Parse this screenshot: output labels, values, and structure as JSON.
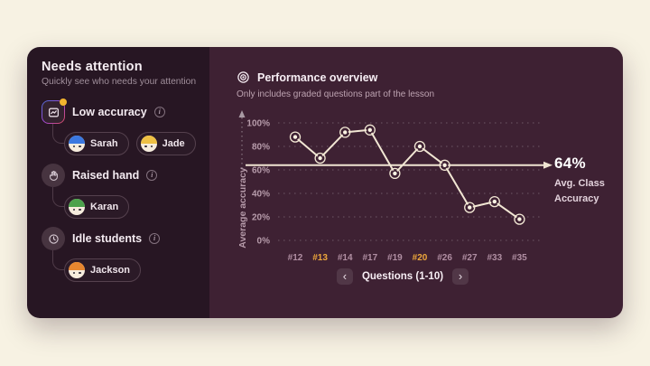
{
  "background": "#f7f2e3",
  "left_panel": {
    "title": "Needs attention",
    "subtitle": "Quickly see who needs your attention",
    "sections": [
      {
        "label": "Low accuracy",
        "students": [
          {
            "name": "Sarah",
            "color": "#3b78e0"
          },
          {
            "name": "Jade",
            "color": "#eec044"
          }
        ]
      },
      {
        "label": "Raised hand",
        "students": [
          {
            "name": "Karan",
            "color": "#4ca24c"
          }
        ]
      },
      {
        "label": "Idle students",
        "students": [
          {
            "name": "Jackson",
            "color": "#e6862f"
          }
        ]
      }
    ]
  },
  "right_panel": {
    "title": "Performance overview",
    "subtitle": "Only includes graded questions part of the lesson",
    "avg_value": "64%",
    "avg_caption_line1": "Avg. Class",
    "avg_caption_line2": "Accuracy",
    "pagination": {
      "prev": "‹",
      "label": "Questions (1-10)",
      "next": "›"
    }
  },
  "icons": {
    "info": "i"
  },
  "chart_data": {
    "type": "line",
    "categories": [
      "#12",
      "#13",
      "#14",
      "#17",
      "#19",
      "#20",
      "#26",
      "#27",
      "#33",
      "#35"
    ],
    "values": [
      88,
      70,
      92,
      94,
      57,
      80,
      64,
      28,
      33,
      18
    ],
    "highlighted_categories": [
      "#13",
      "#20"
    ],
    "title": "Performance overview",
    "xlabel": "Questions (1-10)",
    "ylabel": "Average accuracy",
    "yticks": [
      0,
      20,
      40,
      60,
      80,
      100
    ],
    "ylim": [
      0,
      100
    ],
    "avg_line": 64,
    "grid": "dotted horizontal",
    "line_color": "#f2e7d4",
    "tick_color": "#b79cab",
    "highlight_color": "#eda73c",
    "avg_line_color": "#f0e4d2"
  }
}
